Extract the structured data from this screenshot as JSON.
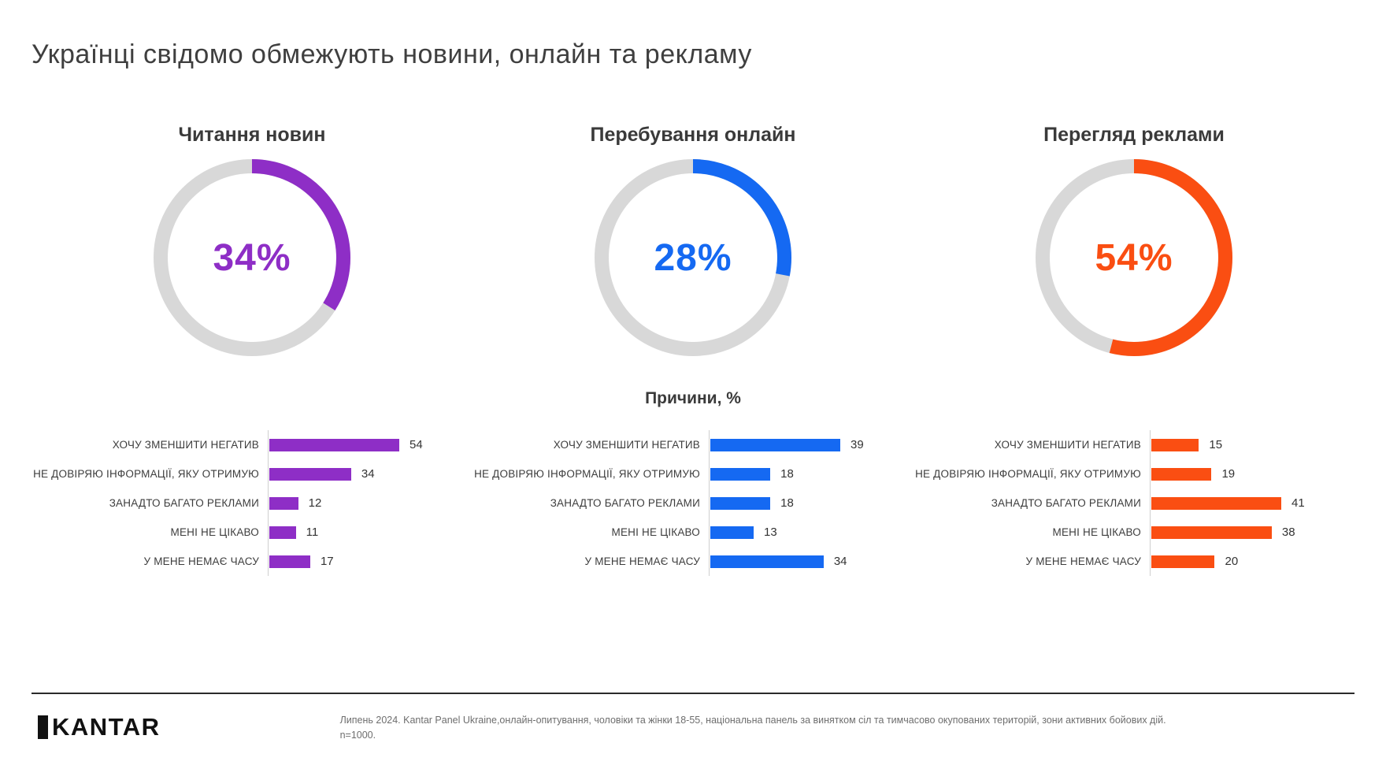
{
  "page": {
    "title": "Українці свідомо обмежують новини, онлайн та рекламу",
    "reasons_heading": "Причини, %",
    "footer": {
      "logo_text": "KANTAR",
      "source_text": "Липень 2024. Kantar Panel Ukraine,онлайн-опитування, чоловіки та жінки 18-55, національна панель за винятком сіл та тимчасово окупованих територій, зони активних бойових дій. n=1000."
    }
  },
  "chart_data": {
    "reasons_categories": [
      "ХОЧУ ЗМЕНШИТИ НЕГАТИВ",
      "НЕ ДОВІРЯЮ ІНФОРМАЦІЇ, ЯКУ ОТРИМУЮ",
      "ЗАНАДТО БАГАТО РЕКЛАМИ",
      "МЕНІ НЕ ЦІКАВО",
      "У МЕНЕ НЕМАЄ ЧАСУ"
    ],
    "track_color": "#D8D8D8",
    "charts": [
      {
        "id": "news-reading",
        "title": "Читання новин",
        "color": "#8E2EC6",
        "donut": {
          "type": "donut",
          "value": 34,
          "display": "34%",
          "unit": "%",
          "start_angle_deg": 0,
          "direction": "clockwise"
        },
        "bars": {
          "type": "bar",
          "orientation": "horizontal",
          "values": [
            54,
            34,
            12,
            11,
            17
          ]
        }
      },
      {
        "id": "online-time",
        "title": "Перебування онлайн",
        "color": "#1569F2",
        "donut": {
          "type": "donut",
          "value": 28,
          "display": "28%",
          "unit": "%",
          "start_angle_deg": 0,
          "direction": "clockwise"
        },
        "bars": {
          "type": "bar",
          "orientation": "horizontal",
          "values": [
            39,
            18,
            18,
            13,
            34
          ]
        }
      },
      {
        "id": "ads-viewing",
        "title": "Перегляд реклами",
        "color": "#FA4E12",
        "donut": {
          "type": "donut",
          "value": 54,
          "display": "54%",
          "unit": "%",
          "start_angle_deg": 0,
          "direction": "clockwise"
        },
        "bars": {
          "type": "bar",
          "orientation": "horizontal",
          "values": [
            15,
            19,
            41,
            38,
            20
          ]
        }
      }
    ]
  }
}
